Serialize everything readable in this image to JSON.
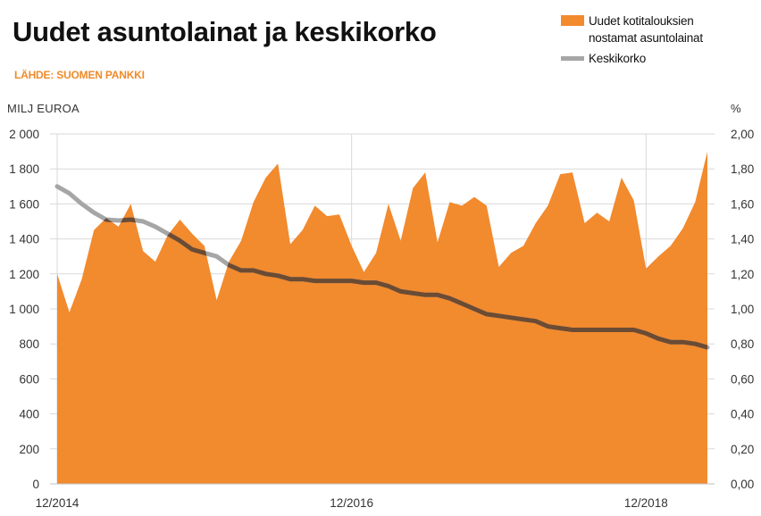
{
  "title": "Uudet asuntolainat ja keskikorko",
  "source": "LÄHDE: SUOMEN PANKKI",
  "left_unit": "MILJ EUROA",
  "right_unit": "%",
  "colors": {
    "area": "#f28a2e",
    "line_light": "#a6a6a6",
    "line_dark": "#6b4b33",
    "grid": "#d9d9d9"
  },
  "chart_data": {
    "type": "area",
    "title": "Uudet asuntolainat ja keskikorko",
    "x_tick_labels": [
      "12/2014",
      "12/2016",
      "12/2018"
    ],
    "x_tick_index": [
      0,
      24,
      48
    ],
    "y_left": {
      "label": "MILJ EUROA",
      "ylim": [
        0,
        2000
      ],
      "ticks": [
        "2 000",
        "1 800",
        "1 600",
        "1 400",
        "1 200",
        "1 000",
        "800",
        "600",
        "400",
        "200",
        "0"
      ]
    },
    "y_right": {
      "label": "%",
      "ylim": [
        0,
        2
      ],
      "ticks": [
        "2,00",
        "1,80",
        "1,60",
        "1,40",
        "1,20",
        "1,00",
        "0,80",
        "0,60",
        "0,40",
        "0,20",
        "0,00"
      ]
    },
    "grid": true,
    "legend_position": "top-right",
    "series": [
      {
        "name": "Uudet kotitalouksien nostamat asuntolainat",
        "type": "area",
        "axis": "left",
        "values": [
          1200,
          980,
          1170,
          1450,
          1520,
          1470,
          1600,
          1330,
          1270,
          1420,
          1510,
          1430,
          1360,
          1050,
          1270,
          1390,
          1610,
          1750,
          1830,
          1370,
          1450,
          1590,
          1530,
          1540,
          1360,
          1210,
          1320,
          1600,
          1390,
          1690,
          1780,
          1380,
          1610,
          1590,
          1640,
          1590,
          1240,
          1320,
          1360,
          1490,
          1590,
          1770,
          1780,
          1490,
          1550,
          1500,
          1750,
          1620,
          1230,
          1300,
          1360,
          1460,
          1610,
          1900
        ]
      },
      {
        "name": "Keskikorko",
        "type": "line",
        "axis": "right",
        "values": [
          1.7,
          1.66,
          1.6,
          1.55,
          1.51,
          1.505,
          1.51,
          1.5,
          1.47,
          1.43,
          1.39,
          1.34,
          1.32,
          1.3,
          1.25,
          1.22,
          1.22,
          1.2,
          1.19,
          1.17,
          1.17,
          1.16,
          1.16,
          1.16,
          1.16,
          1.15,
          1.15,
          1.13,
          1.1,
          1.09,
          1.08,
          1.08,
          1.06,
          1.03,
          1.0,
          0.97,
          0.96,
          0.95,
          0.94,
          0.93,
          0.9,
          0.89,
          0.88,
          0.88,
          0.88,
          0.88,
          0.88,
          0.88,
          0.86,
          0.83,
          0.81,
          0.81,
          0.8,
          0.78
        ]
      }
    ]
  }
}
